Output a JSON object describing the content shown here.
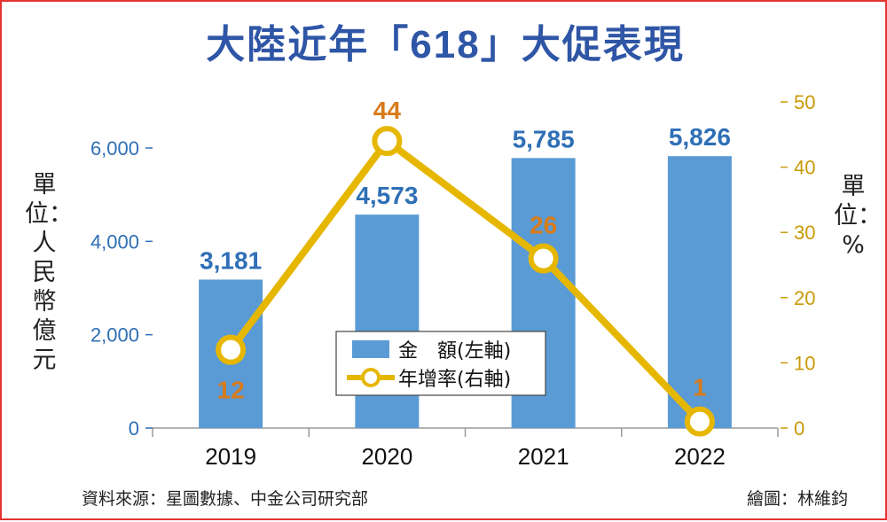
{
  "title_prefix": "大陸近年「",
  "title_num": "618",
  "title_suffix": "」大促表現",
  "unit_left": "單位：人民幣億元",
  "unit_right": "單位：%",
  "source": "資料來源：星圖數據、中金公司研究部",
  "credit": "繪圖：林維鈞",
  "colors": {
    "bar": "#5b9bd5",
    "line": "#e6b700",
    "bar_label": "#2f6fb6",
    "point_label": "#d87a1a",
    "title": "#2f56a6"
  },
  "chart_data": {
    "type": "bar",
    "categories": [
      "2019",
      "2020",
      "2021",
      "2022"
    ],
    "series": [
      {
        "name": "金　額(左軸)",
        "type": "bar",
        "axis": "left",
        "values": [
          3181,
          4573,
          5785,
          5826
        ],
        "labels": [
          "3,181",
          "4,573",
          "5,785",
          "5,826"
        ]
      },
      {
        "name": "年增率(右軸)",
        "type": "line",
        "axis": "right",
        "values": [
          12,
          44,
          26,
          1
        ],
        "labels": [
          "12",
          "44",
          "26",
          "1"
        ]
      }
    ],
    "y_left": {
      "range": [
        0,
        6000
      ],
      "ticks": [
        0,
        2000,
        4000,
        6000
      ],
      "tick_labels": [
        "0",
        "2,000",
        "4,000",
        "6,000"
      ]
    },
    "y_right": {
      "range": [
        0,
        50
      ],
      "ticks": [
        0,
        10,
        20,
        30,
        40,
        50
      ],
      "tick_labels": [
        "0",
        "10",
        "20",
        "30",
        "40",
        "50"
      ]
    },
    "legend_position": "center",
    "grid": false
  }
}
